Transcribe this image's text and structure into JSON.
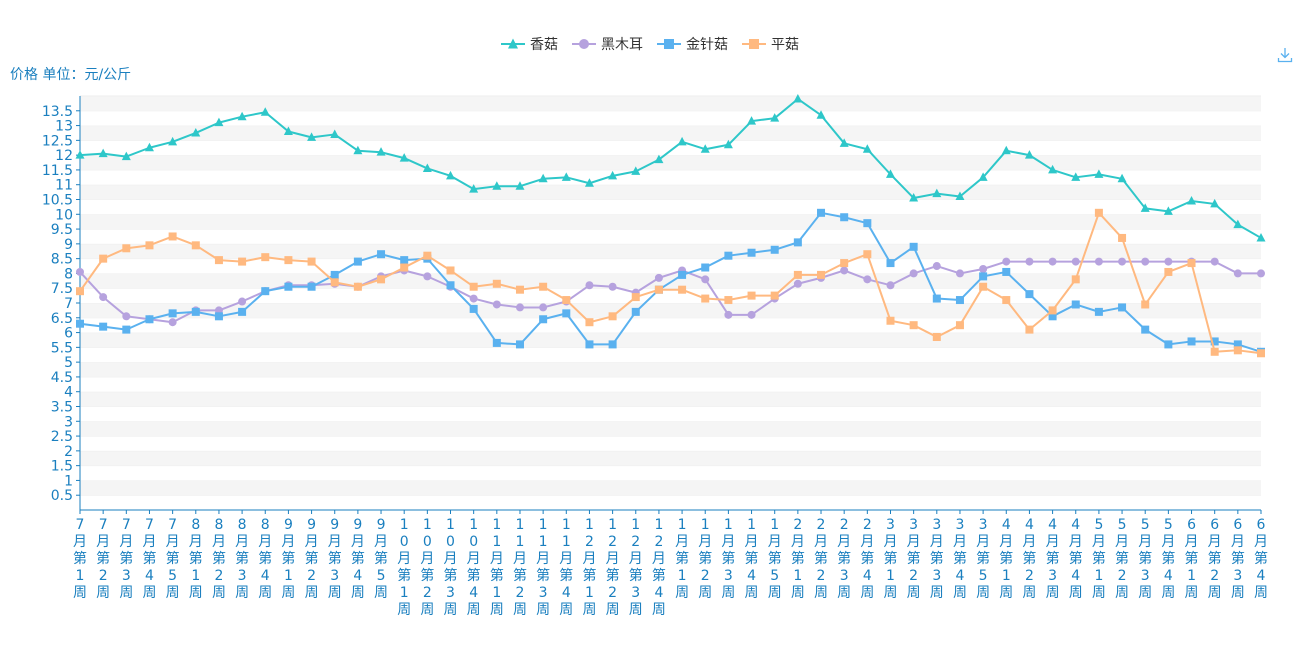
{
  "legend_items": [
    "香菇",
    "黑木耳",
    "金针菇",
    "平菇"
  ],
  "unit_label": "价格 单位：元/公斤",
  "toolbar": {
    "download_icon": "download-icon"
  },
  "chart_data": {
    "type": "line",
    "ylabel": "价格 单位：元/公斤",
    "ylim": [
      0,
      14
    ],
    "y_ticks": [
      "0.5",
      "1",
      "1.5",
      "2",
      "2.5",
      "3",
      "3.5",
      "4",
      "4.5",
      "5",
      "5.5",
      "6",
      "6.5",
      "7",
      "7.5",
      "8",
      "8.5",
      "9",
      "9.5",
      "10",
      "10.5",
      "11",
      "11.5",
      "12",
      "12.5",
      "13",
      "13.5"
    ],
    "categories": [
      "7月第1周",
      "7月第2周",
      "7月第3周",
      "7月第4周",
      "7月第5周",
      "8月第1周",
      "8月第2周",
      "8月第3周",
      "8月第4周",
      "9月第1周",
      "9月第2周",
      "9月第3周",
      "9月第4周",
      "9月第5周",
      "10月第1周",
      "10月第2周",
      "10月第3周",
      "10月第4周",
      "11月第1周",
      "11月第2周",
      "11月第3周",
      "11月第4周",
      "12月第1周",
      "12月第2周",
      "12月第3周",
      "12月第4周",
      "1月第1周",
      "1月第2周",
      "1月第3周",
      "1月第4周",
      "1月第5周",
      "2月第1周",
      "2月第2周",
      "2月第3周",
      "2月第4周",
      "3月第1周",
      "3月第2周",
      "3月第3周",
      "3月第4周",
      "3月第5周",
      "4月第1周",
      "4月第2周",
      "4月第3周",
      "4月第4周",
      "5月第1周",
      "5月第2周",
      "5月第3周",
      "5月第4周",
      "6月第1周",
      "6月第2周",
      "6月第3周",
      "6月第4周"
    ],
    "grid": true,
    "legend_position": "top-center",
    "series": [
      {
        "name": "香菇",
        "color": "#2ec7c9",
        "marker": "triangle",
        "values": [
          12.0,
          12.05,
          11.95,
          12.25,
          12.45,
          12.75,
          13.1,
          13.3,
          13.45,
          12.8,
          12.6,
          12.7,
          12.15,
          12.1,
          11.9,
          11.55,
          11.3,
          10.85,
          10.95,
          10.95,
          11.2,
          11.25,
          11.05,
          11.3,
          11.45,
          11.85,
          12.45,
          12.2,
          12.35,
          13.15,
          13.25,
          13.9,
          13.35,
          12.4,
          12.2,
          11.35,
          10.55,
          10.7,
          10.6,
          11.25,
          12.15,
          12.0,
          11.5,
          11.25,
          11.35,
          11.2,
          10.2,
          10.1,
          10.45,
          10.35,
          9.65,
          9.2
        ]
      },
      {
        "name": "黑木耳",
        "color": "#b6a2de",
        "marker": "circle",
        "values": [
          8.05,
          7.2,
          6.55,
          6.45,
          6.35,
          6.75,
          6.75,
          7.05,
          7.4,
          7.6,
          7.6,
          7.65,
          7.55,
          7.9,
          8.1,
          7.9,
          7.55,
          7.15,
          6.95,
          6.85,
          6.85,
          7.05,
          7.6,
          7.55,
          7.35,
          7.85,
          8.1,
          7.8,
          6.6,
          6.6,
          7.15,
          7.65,
          7.85,
          8.1,
          7.8,
          7.6,
          8.0,
          8.25,
          8.0,
          8.15,
          8.4,
          8.4,
          8.4,
          8.4,
          8.4,
          8.4,
          8.4,
          8.4,
          8.4,
          8.4,
          8.0,
          8.0
        ]
      },
      {
        "name": "金针菇",
        "color": "#5ab1ef",
        "marker": "square",
        "values": [
          6.3,
          6.2,
          6.1,
          6.45,
          6.65,
          6.7,
          6.55,
          6.7,
          7.4,
          7.55,
          7.55,
          7.95,
          8.4,
          8.65,
          8.45,
          8.5,
          7.6,
          6.8,
          5.65,
          5.6,
          6.45,
          6.65,
          5.6,
          5.6,
          6.7,
          7.45,
          7.95,
          8.2,
          8.6,
          8.7,
          8.8,
          9.05,
          10.05,
          9.9,
          9.7,
          8.35,
          8.9,
          7.15,
          7.1,
          7.9,
          8.05,
          7.3,
          6.55,
          6.95,
          6.7,
          6.85,
          6.1,
          5.6,
          5.7,
          5.7,
          5.6,
          5.35
        ]
      },
      {
        "name": "平菇",
        "color": "#ffb980",
        "marker": "square",
        "values": [
          7.4,
          8.5,
          8.85,
          8.95,
          9.25,
          8.95,
          8.45,
          8.4,
          8.55,
          8.45,
          8.4,
          7.7,
          7.55,
          7.8,
          8.2,
          8.6,
          8.1,
          7.55,
          7.65,
          7.45,
          7.55,
          7.1,
          6.35,
          6.55,
          7.2,
          7.45,
          7.45,
          7.15,
          7.1,
          7.25,
          7.25,
          7.95,
          7.95,
          8.35,
          8.65,
          6.4,
          6.25,
          5.85,
          6.25,
          7.55,
          7.1,
          6.1,
          6.75,
          7.8,
          10.05,
          9.2,
          6.95,
          8.05,
          8.35,
          5.35,
          5.4,
          5.3
        ]
      }
    ]
  }
}
